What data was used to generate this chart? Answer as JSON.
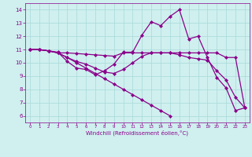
{
  "xlabel": "Windchill (Refroidissement éolien,°C)",
  "bg_color": "#cff0ef",
  "line_color": "#8b008b",
  "marker": "D",
  "marker_size": 2,
  "linewidth": 0.9,
  "xlim": [
    -0.5,
    23.5
  ],
  "ylim": [
    5.5,
    14.5
  ],
  "xticks": [
    0,
    1,
    2,
    3,
    4,
    5,
    6,
    7,
    8,
    9,
    10,
    11,
    12,
    13,
    14,
    15,
    16,
    17,
    18,
    19,
    20,
    21,
    22,
    23
  ],
  "yticks": [
    6,
    7,
    8,
    9,
    10,
    11,
    12,
    13,
    14
  ],
  "grid_color": "#a8d8d8",
  "lines": [
    [
      11.0,
      11.0,
      10.9,
      10.8,
      10.1,
      9.6,
      9.5,
      9.1,
      9.4,
      9.9,
      10.8,
      10.8,
      12.1,
      13.1,
      12.8,
      13.5,
      14.0,
      11.8,
      12.0,
      10.4,
      8.9,
      8.1,
      6.4,
      6.6
    ],
    [
      11.0,
      11.0,
      10.9,
      10.75,
      10.75,
      10.7,
      10.65,
      10.6,
      10.55,
      10.5,
      10.75,
      10.75,
      10.75,
      10.75,
      10.75,
      10.75,
      10.75,
      10.75,
      10.75,
      10.75,
      10.75,
      10.4,
      10.4,
      6.6
    ],
    [
      11.0,
      11.0,
      10.9,
      10.75,
      10.4,
      10.1,
      9.9,
      9.6,
      9.3,
      9.2,
      9.5,
      10.0,
      10.5,
      10.75,
      10.75,
      10.75,
      10.6,
      10.4,
      10.3,
      10.2,
      9.4,
      8.7,
      7.4,
      6.6
    ],
    [
      11.0,
      11.0,
      10.9,
      10.75,
      10.4,
      10.0,
      9.6,
      9.2,
      8.8,
      8.4,
      8.0,
      7.6,
      7.2,
      6.8,
      6.4,
      6.0,
      null,
      null,
      null,
      null,
      null,
      null,
      null,
      null
    ]
  ]
}
